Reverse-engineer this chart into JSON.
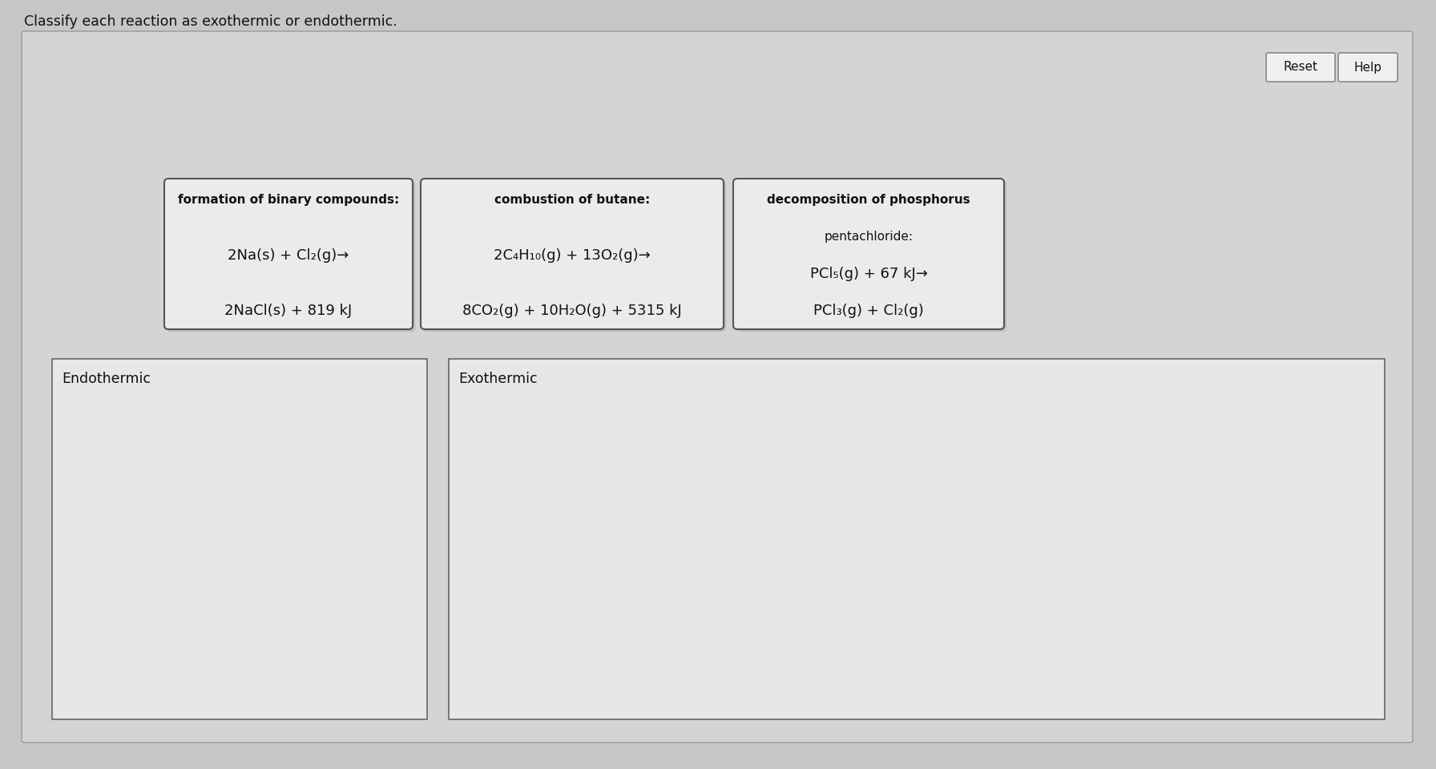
{
  "title": "Classify each reaction as exothermic or endothermic.",
  "background_outer": "#c8c6c6",
  "background_inner": "#dddbd b",
  "panel_bg": "#d8d6d6",
  "card_face": "#eceaea",
  "card_border": "#555555",
  "button_face": "#f0f0f0",
  "button_border": "#888888",
  "drop_face": "#e8e6e6",
  "drop_border": "#666666",
  "text_color": "#111111",
  "button_reset": "Reset",
  "button_help": "Help",
  "card1_title": "formation of binary compounds:",
  "card1_line2": "2Na(s) + Cl₂(g)→",
  "card1_line3": "2NaCl(s) + 819 kJ",
  "card2_title": "combustion of butane:",
  "card2_line2": "2C₄H₁₀(g) + 13O₂(g)→",
  "card2_line3": "8CO₂(g) + 10H₂O(g) + 5315 kJ",
  "card3_title": "decomposition of phosphorus",
  "card3_title2": "pentachloride:",
  "card3_line2": "PCl₅(g) + 67 kJ→",
  "card3_line3": "PCl₃(g) + Cl₂(g)",
  "drop1_label": "Endothermic",
  "drop2_label": "Exothermic",
  "fig_w": 17.92,
  "fig_h": 9.6,
  "dpi": 100
}
